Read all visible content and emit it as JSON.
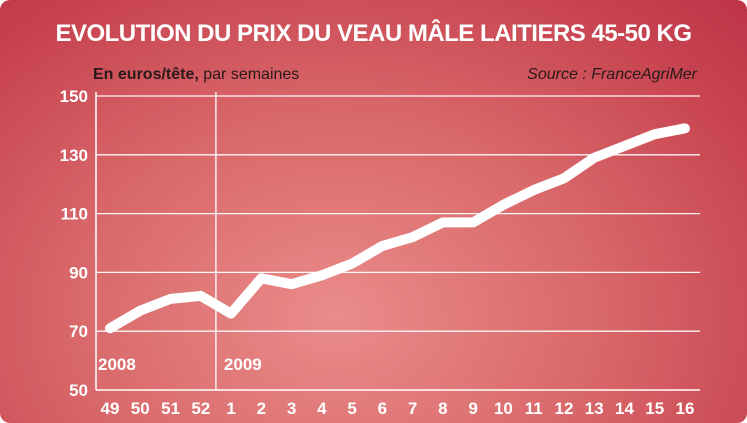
{
  "chart_data": {
    "type": "line",
    "title": "EVOLUTION DU PRIX DU VEAU MÂLE LAITIERS 45-50 KG",
    "subtitle_unit": "En euros/tête,",
    "subtitle_rest": " par semaines",
    "source": "Source : FranceAgriMer",
    "categories": [
      "49",
      "50",
      "51",
      "52",
      "1",
      "2",
      "3",
      "4",
      "5",
      "6",
      "7",
      "8",
      "9",
      "10",
      "11",
      "12",
      "13",
      "14",
      "15",
      "16"
    ],
    "values": [
      71,
      77,
      81,
      82,
      76,
      88,
      86,
      89,
      93,
      99,
      102,
      107,
      107,
      113,
      118,
      122,
      129,
      133,
      137,
      139
    ],
    "ylim": [
      50,
      150
    ],
    "yticks": [
      "50",
      "70",
      "90",
      "110",
      "130",
      "150"
    ],
    "year_labels": [
      {
        "text": "2008",
        "category_index": 0
      },
      {
        "text": "2009",
        "category_index": 4
      }
    ],
    "grid": true,
    "colors": {
      "line": "#ffffff",
      "background": "#c84451"
    }
  }
}
